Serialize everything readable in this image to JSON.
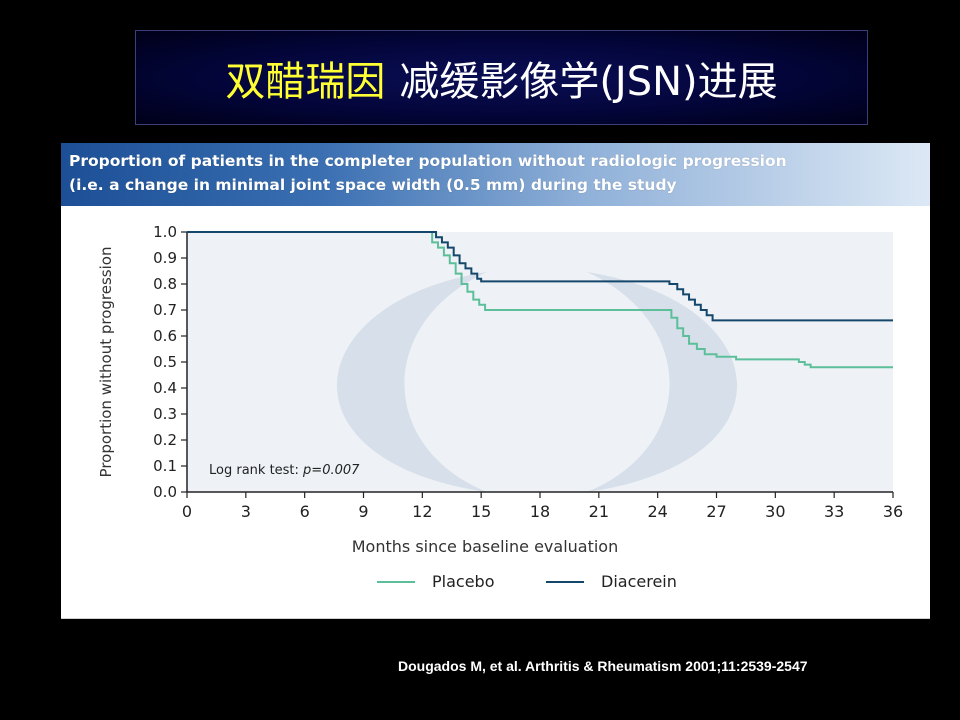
{
  "slide": {
    "title_highlight": "双醋瑞因",
    "title_rest": "减缓影像学(JSN)进展",
    "citation": "Dougados M, et al. Arthritis & Rheumatism 2001;11:2539-2547"
  },
  "colors": {
    "background": "#000000",
    "title_highlight": "#ffff33",
    "placebo": "#5cbf9a",
    "diacerein": "#14476b",
    "plot_bg": "#eef2f6"
  },
  "chart_data": {
    "type": "line",
    "title": "Proportion of patients in the completer population without radiologic progression (i.e. a change in minimal joint space width (0.5 mm) during the study",
    "title_lines": [
      "Proportion of patients in the completer population without radiologic progression",
      "(i.e. a change in minimal joint space width (0.5 mm) during the study"
    ],
    "xlabel": "Months since baseline evaluation",
    "ylabel": "Proportion without progression",
    "xlim": [
      0,
      36
    ],
    "ylim": [
      0,
      1.0
    ],
    "x_ticks": [
      "0",
      "3",
      "6",
      "9",
      "12",
      "15",
      "18",
      "21",
      "24",
      "27",
      "30",
      "33",
      "36"
    ],
    "y_ticks": [
      "0.0",
      "0.1",
      "0.2",
      "0.3",
      "0.4",
      "0.5",
      "0.6",
      "0.7",
      "0.8",
      "0.9",
      "1.0"
    ],
    "annotation_prefix": "Log rank test: ",
    "annotation_value": "p=0.007",
    "legend_position": "bottom",
    "series": [
      {
        "name": "Placebo",
        "color": "#5cbf9a",
        "steps": [
          [
            0,
            1.0
          ],
          [
            12.5,
            0.96
          ],
          [
            12.8,
            0.94
          ],
          [
            13.1,
            0.91
          ],
          [
            13.4,
            0.88
          ],
          [
            13.7,
            0.84
          ],
          [
            14.0,
            0.8
          ],
          [
            14.3,
            0.77
          ],
          [
            14.6,
            0.74
          ],
          [
            14.9,
            0.72
          ],
          [
            15.2,
            0.7
          ],
          [
            24.7,
            0.67
          ],
          [
            25.0,
            0.63
          ],
          [
            25.3,
            0.6
          ],
          [
            25.6,
            0.57
          ],
          [
            26.0,
            0.55
          ],
          [
            26.4,
            0.53
          ],
          [
            27.0,
            0.52
          ],
          [
            28.0,
            0.51
          ],
          [
            31.2,
            0.5
          ],
          [
            31.5,
            0.49
          ],
          [
            31.8,
            0.48
          ],
          [
            36.0,
            0.48
          ]
        ]
      },
      {
        "name": "Diacerein",
        "color": "#14476b",
        "steps": [
          [
            0,
            1.0
          ],
          [
            12.7,
            0.98
          ],
          [
            13.0,
            0.96
          ],
          [
            13.3,
            0.94
          ],
          [
            13.6,
            0.91
          ],
          [
            13.9,
            0.88
          ],
          [
            14.2,
            0.86
          ],
          [
            14.5,
            0.84
          ],
          [
            14.8,
            0.82
          ],
          [
            15.0,
            0.81
          ],
          [
            24.6,
            0.8
          ],
          [
            25.0,
            0.78
          ],
          [
            25.3,
            0.76
          ],
          [
            25.6,
            0.74
          ],
          [
            25.9,
            0.72
          ],
          [
            26.2,
            0.7
          ],
          [
            26.5,
            0.68
          ],
          [
            26.8,
            0.66
          ],
          [
            36.0,
            0.66
          ]
        ]
      }
    ]
  }
}
